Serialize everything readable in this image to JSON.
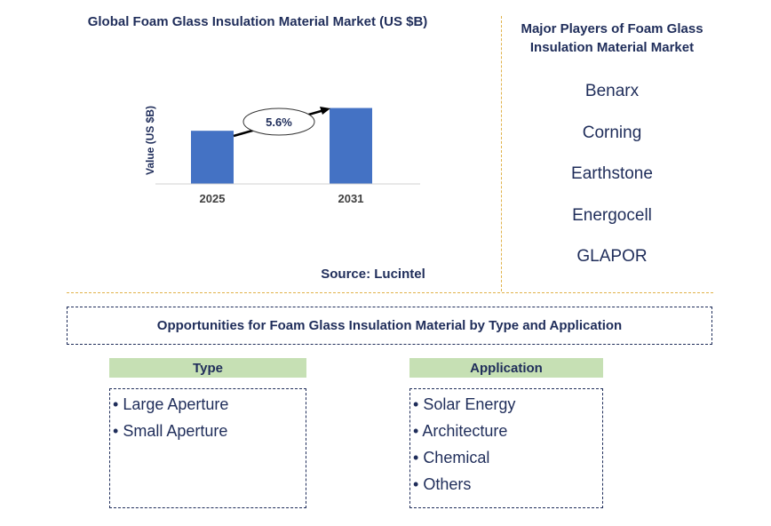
{
  "chart_data": {
    "type": "bar",
    "title": "Global Foam Glass Insulation Material Market (US $B)",
    "ylabel": "Value (US $B)",
    "xlabel": "",
    "categories": [
      "2025",
      "2031"
    ],
    "values": [
      0.7,
      1.0
    ],
    "ylim": [
      0,
      1.1
    ],
    "annotation": "5.6%",
    "bar_color": "#4472c4",
    "source": "Source: Lucintel"
  },
  "players": {
    "title": "Major Players of Foam Glass Insulation Material Market",
    "items": [
      "Benarx",
      "Corning",
      "Earthstone",
      "Energocell",
      "GLAPOR"
    ]
  },
  "opportunities": {
    "title": "Opportunities for Foam Glass Insulation Material by Type and Application",
    "type": {
      "header": "Type",
      "items": [
        "Large Aperture",
        "Small Aperture"
      ]
    },
    "application": {
      "header": "Application",
      "items": [
        "Solar Energy",
        "Architecture",
        "Chemical",
        "Others"
      ]
    }
  },
  "colors": {
    "navy": "#1f2d5a",
    "divider": "#e0b24a",
    "header_green": "#c6e0b4"
  }
}
